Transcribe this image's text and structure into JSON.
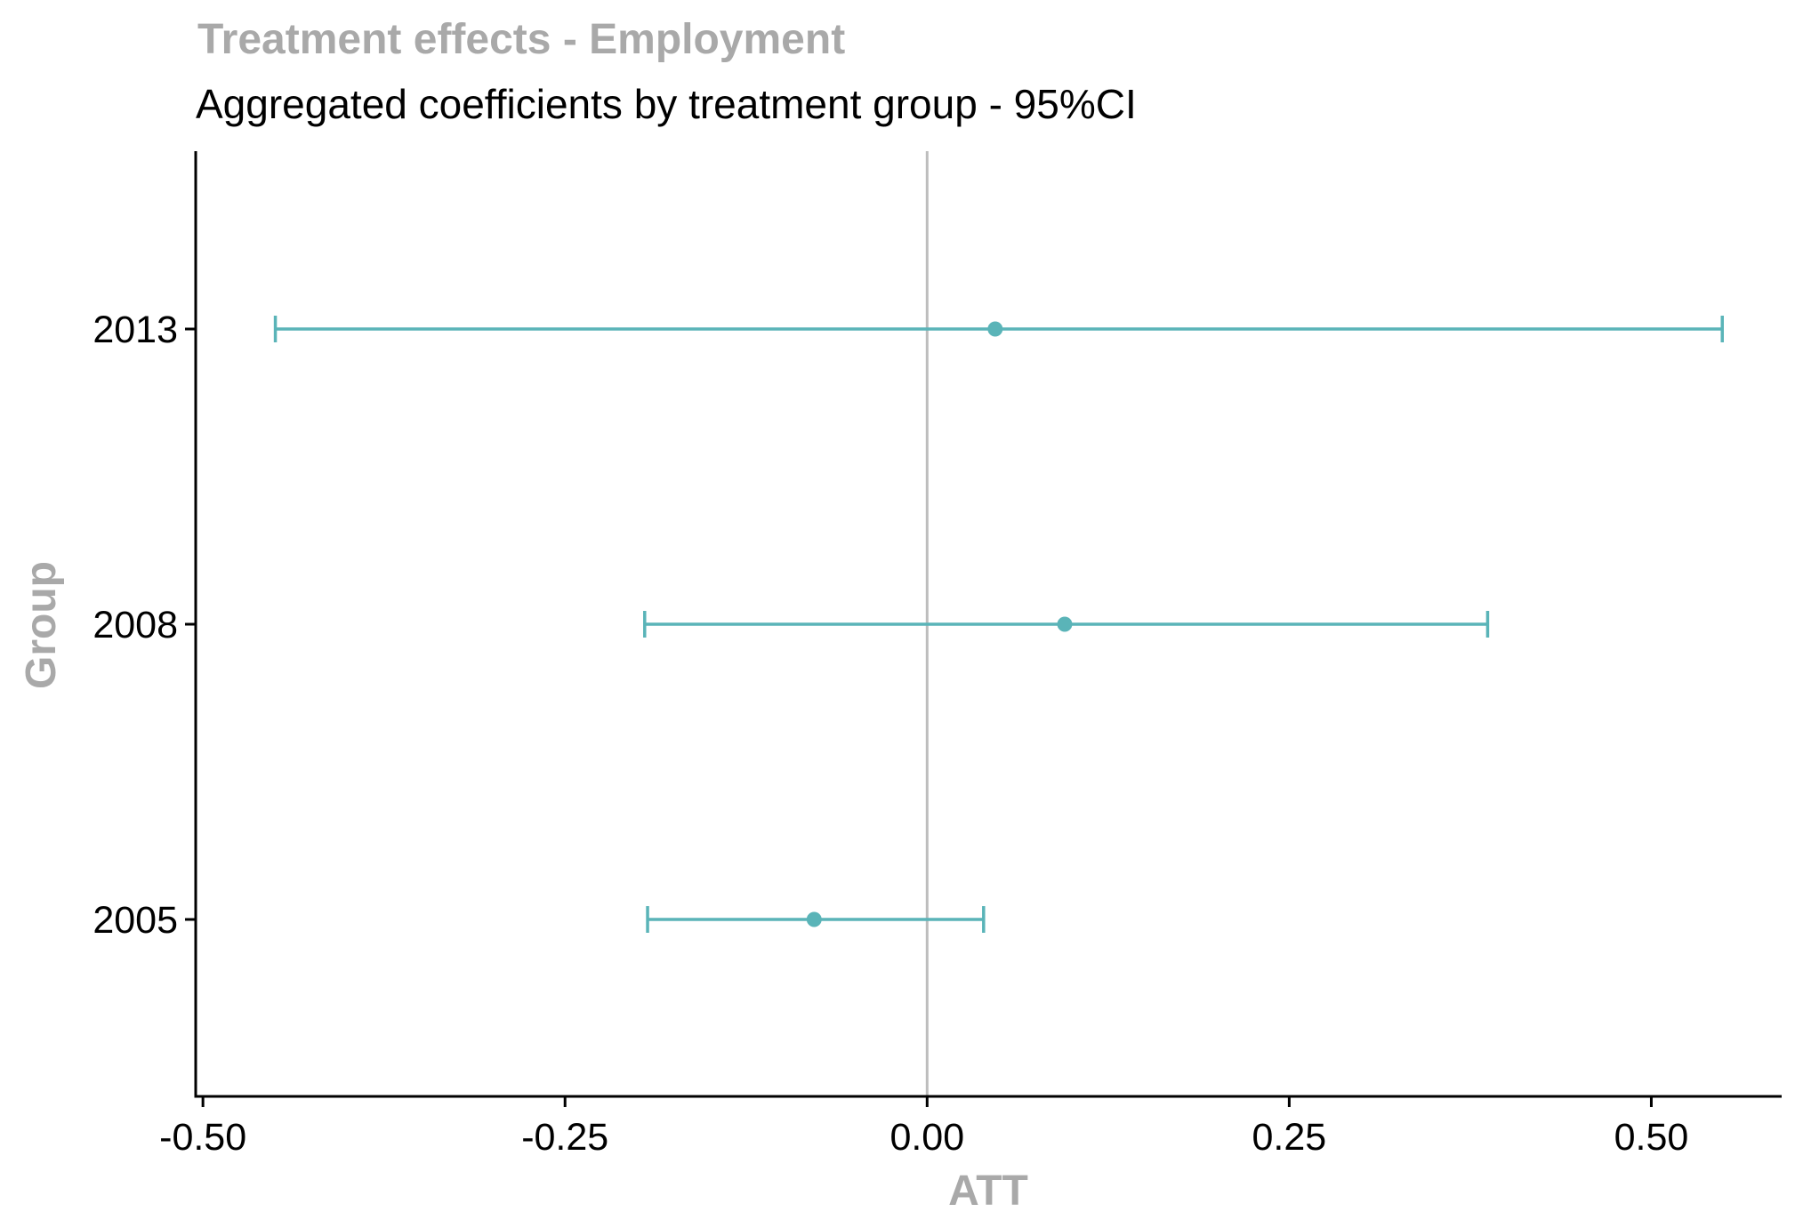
{
  "chart_data": {
    "type": "errorbar",
    "title": "Treatment effects - Employment",
    "subtitle": "Aggregated coefficients by treatment group - 95%CI",
    "xlabel": "ATT",
    "ylabel": "Group",
    "xlim": [
      -0.505,
      0.59
    ],
    "x_ticks": [
      -0.5,
      -0.25,
      0.0,
      0.25,
      0.5
    ],
    "x_tick_labels": [
      "-0.50",
      "-0.25",
      "0.00",
      "0.25",
      "0.50"
    ],
    "categories": [
      "2005",
      "2008",
      "2013"
    ],
    "estimates": [
      -0.078,
      0.095,
      0.047
    ],
    "ci_lower": [
      -0.193,
      -0.195,
      -0.45
    ],
    "ci_upper": [
      0.039,
      0.387,
      0.549
    ],
    "reference_line_x": 0.0,
    "grid": false,
    "colors": {
      "series": "#5ab4b8",
      "reference_line": "#bdbdbd",
      "title": "#a9a9a9",
      "axis_title": "#a9a9a9",
      "axis": "#000000",
      "text": "#000000"
    }
  }
}
